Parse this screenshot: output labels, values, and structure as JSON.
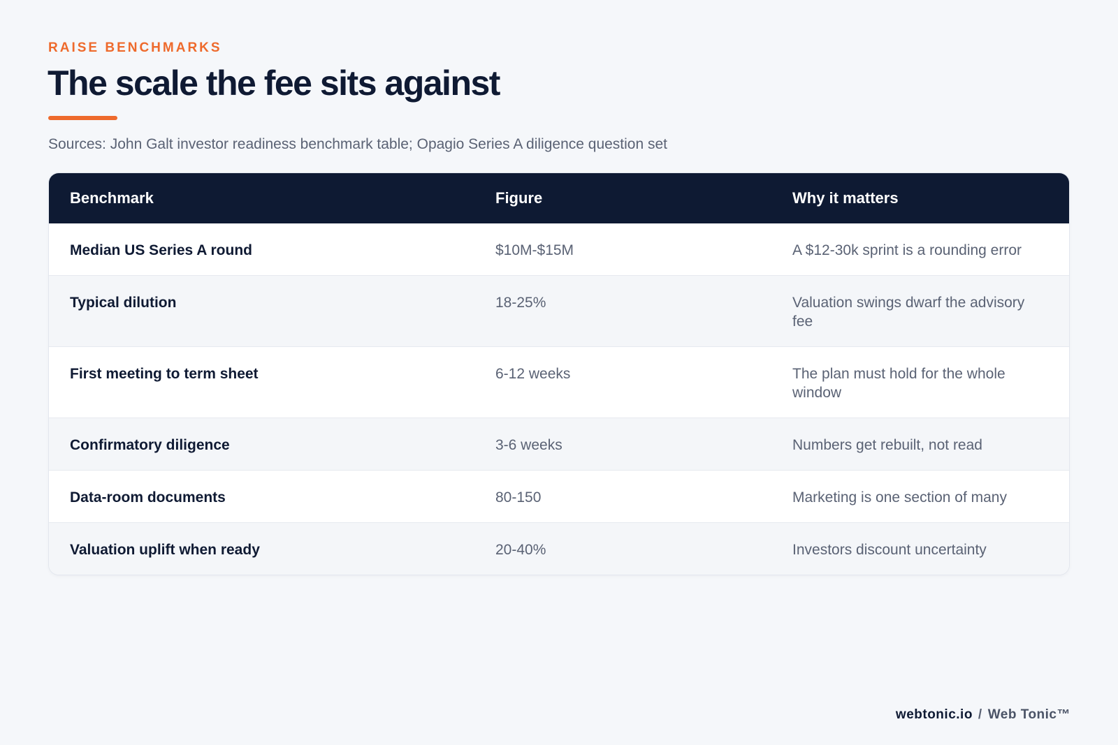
{
  "header": {
    "eyebrow": "RAISE BENCHMARKS",
    "title": "The scale the fee sits against",
    "sources": "Sources: John Galt investor readiness benchmark table; Opagio Series A diligence question set"
  },
  "table": {
    "columns": [
      "Benchmark",
      "Figure",
      "Why it matters"
    ],
    "rows": [
      {
        "benchmark": "Median US Series A round",
        "figure": "$10M-$15M",
        "why": "A $12-30k sprint is a rounding error"
      },
      {
        "benchmark": "Typical dilution",
        "figure": "18-25%",
        "why": "Valuation swings dwarf the advisory fee"
      },
      {
        "benchmark": "First meeting to term sheet",
        "figure": "6-12 weeks",
        "why": "The plan must hold for the whole window"
      },
      {
        "benchmark": "Confirmatory diligence",
        "figure": "3-6 weeks",
        "why": "Numbers get rebuilt, not read"
      },
      {
        "benchmark": "Data-room documents",
        "figure": "80-150",
        "why": "Marketing is one section of many"
      },
      {
        "benchmark": "Valuation uplift when ready",
        "figure": "20-40%",
        "why": "Investors discount uncertainty"
      }
    ]
  },
  "footer": {
    "site": "webtonic.io",
    "separator": "/",
    "brand": "Web Tonic™"
  },
  "colors": {
    "accent": "#ee6a2c",
    "navy": "#0e1a33",
    "muted_text": "#5a6274",
    "page_background": "#f5f7fa",
    "row_alt": "#f4f6f9"
  }
}
